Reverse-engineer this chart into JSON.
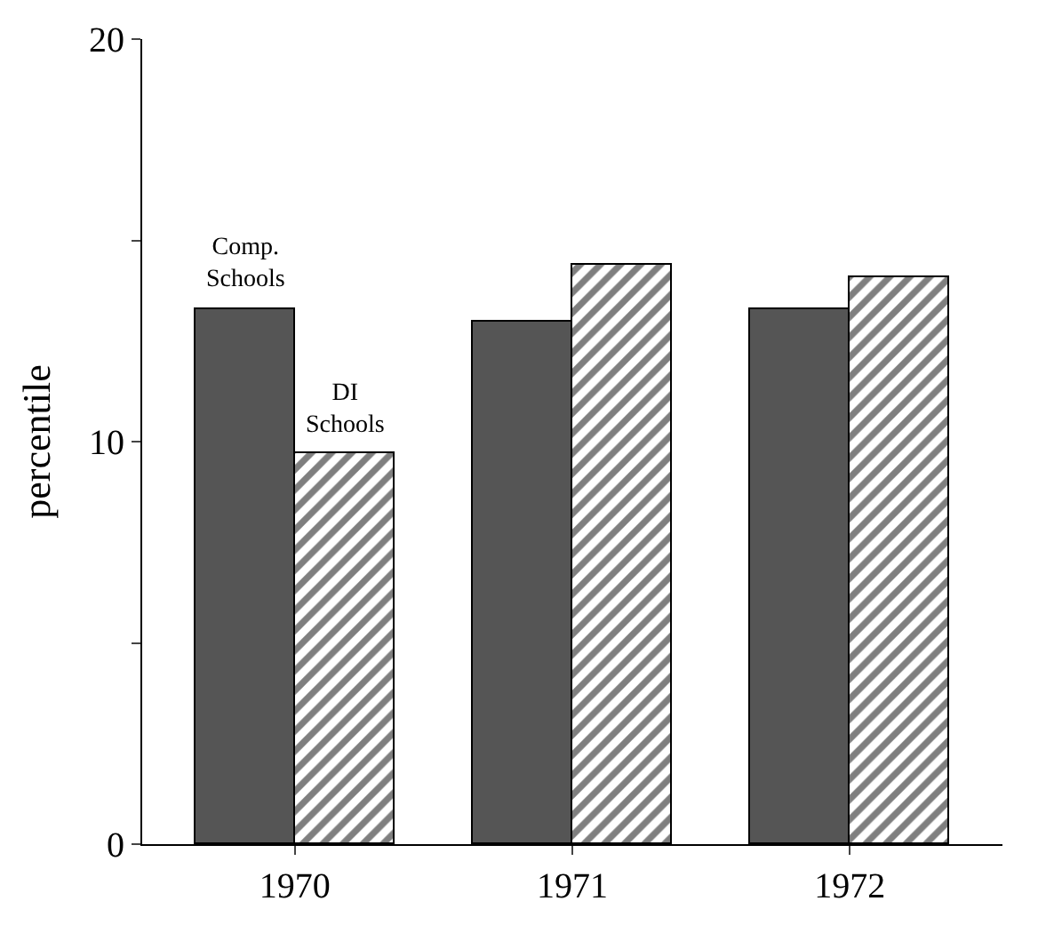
{
  "chart_data": {
    "type": "bar",
    "ylabel": "percentile",
    "categories": [
      "1970",
      "1971",
      "1972"
    ],
    "series": [
      {
        "name": "Comp. Schools",
        "color": "#555555",
        "values": [
          13.3,
          13.0,
          13.3
        ]
      },
      {
        "name": "DI Schools",
        "color": "#000000",
        "values": [
          9.7,
          14.4,
          14.1
        ]
      }
    ],
    "ylim": [
      0,
      20
    ],
    "yticks": [
      0,
      {
        "value": 5,
        "label": null
      },
      10,
      {
        "value": 15,
        "label": null
      },
      20
    ],
    "legend": false
  }
}
